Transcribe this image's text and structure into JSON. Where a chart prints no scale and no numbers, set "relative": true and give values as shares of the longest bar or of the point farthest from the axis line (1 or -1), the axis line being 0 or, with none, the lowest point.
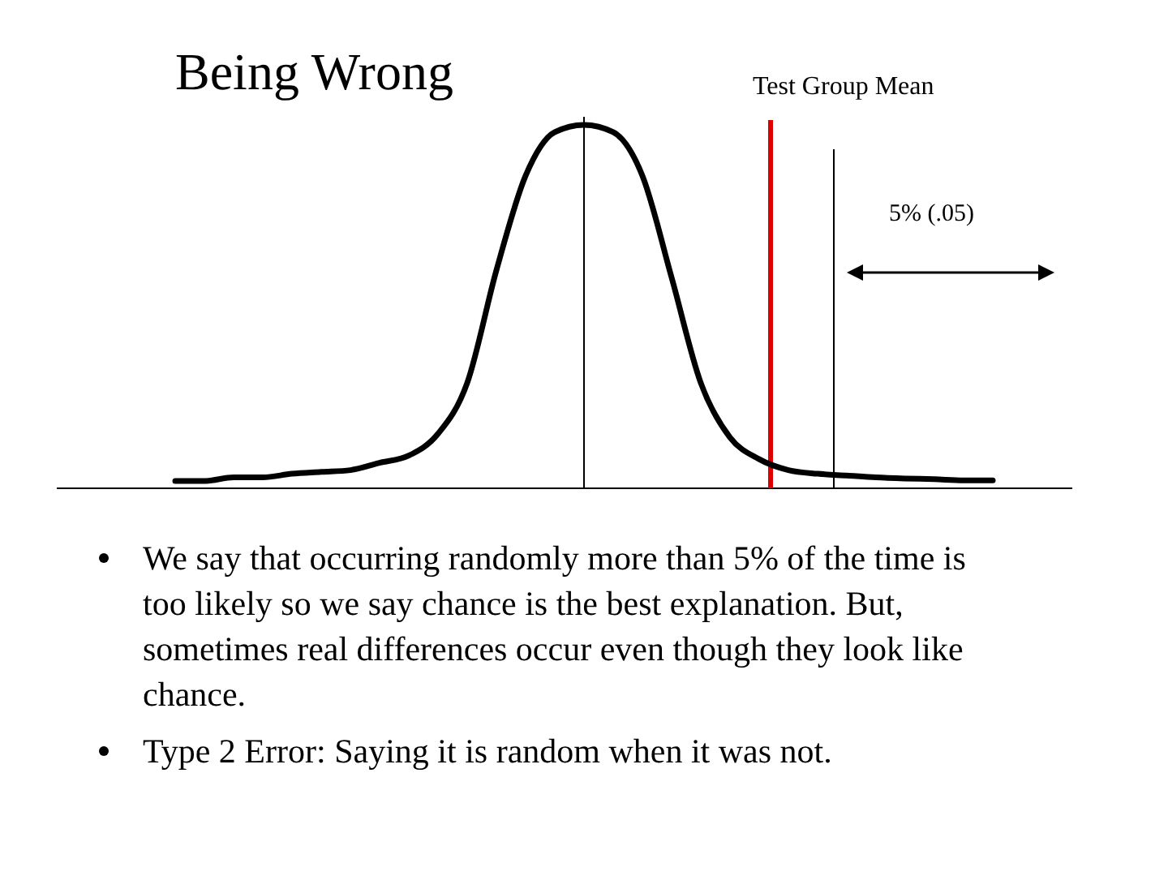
{
  "chart_data": {
    "type": "line",
    "title": "Being Wrong",
    "relative": true,
    "marker": "none",
    "line_style": "solid",
    "categories": [
      null,
      null,
      null,
      null,
      null,
      null,
      null,
      null,
      null,
      null,
      null,
      null,
      null,
      null,
      null,
      null,
      null,
      null,
      null,
      null,
      null,
      null,
      null,
      null,
      null,
      null,
      null,
      null,
      null
    ],
    "series": [
      {
        "color": "#000000",
        "values": [
          0.02,
          0.02,
          0.03,
          0.03,
          0.04,
          0.045,
          0.05,
          0.07,
          0.09,
          0.15,
          0.29,
          0.6,
          0.86,
          0.98,
          1,
          0.98,
          0.86,
          0.58,
          0.29,
          0.14,
          0.08,
          0.05,
          0.04,
          0.035,
          0.03,
          0.027,
          0.025,
          0.022,
          0.022
        ]
      }
    ],
    "annotations": [
      "Test Group Mean",
      "5% (.05)",
      "We say that occurring randomly more than 5% of the time is too likely so we say chance is the best explanation. But, sometimes real differences occur even though they look like chance.",
      "Type 2 Error: Saying it is random when it was not."
    ]
  }
}
